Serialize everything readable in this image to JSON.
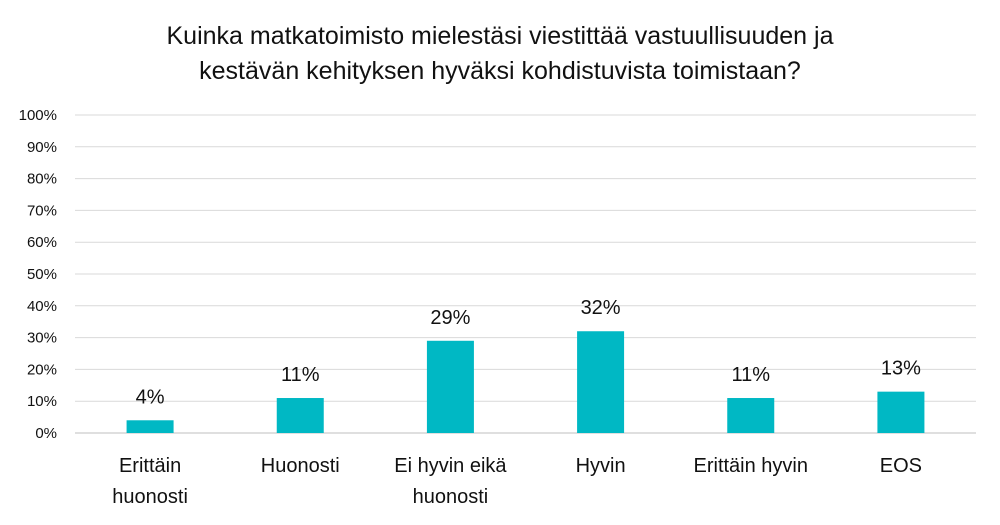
{
  "chart_data": {
    "type": "bar",
    "title_lines": [
      "Kuinka matkatoimisto mielestäsi viestittää vastuullisuuden ja",
      "kestävän kehityksen hyväksi kohdistuvista toimistaan?"
    ],
    "categories": [
      [
        "Erittäin",
        "huonosti"
      ],
      [
        "Huonosti"
      ],
      [
        "Ei hyvin eikä",
        "huonosti"
      ],
      [
        "Hyvin"
      ],
      [
        "Erittäin hyvin"
      ],
      [
        "EOS"
      ]
    ],
    "values": [
      4,
      11,
      29,
      32,
      11,
      13
    ],
    "data_labels": [
      "4%",
      "11%",
      "29%",
      "32%",
      "11%",
      "13%"
    ],
    "y_ticks": [
      "0%",
      "10%",
      "20%",
      "30%",
      "40%",
      "50%",
      "60%",
      "70%",
      "80%",
      "90%",
      "100%"
    ],
    "ylim": [
      0,
      100
    ],
    "grid": true,
    "legend": "none",
    "bar_color": "#00B8C4",
    "grid_color": "#D9D9D9",
    "text_color": "#111111"
  }
}
